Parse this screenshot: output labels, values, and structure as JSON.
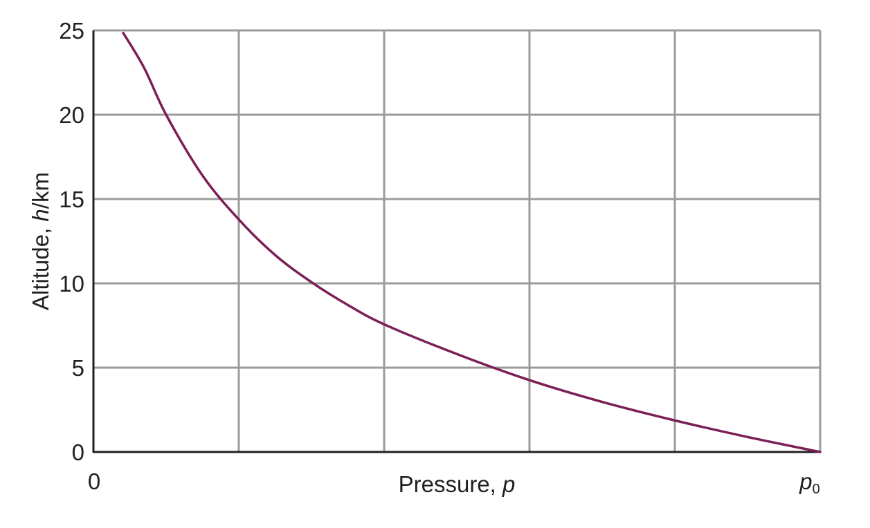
{
  "chart_data": {
    "type": "line",
    "title": "",
    "xlabel": "Pressure, ",
    "xlabel_var": "p",
    "ylabel": "Altitude, ",
    "ylabel_var": "h",
    "ylabel_unit": "/km",
    "x_tick_zero": "0",
    "x_tick_end_var": "p",
    "x_tick_end_sub": "0",
    "y_ticks": [
      "0",
      "5",
      "10",
      "15",
      "20",
      "25"
    ],
    "xlim": [
      0,
      1
    ],
    "ylim": [
      0,
      25
    ],
    "x_grid_fractions": [
      0,
      0.2,
      0.4,
      0.6,
      0.8,
      1.0
    ],
    "grid": true,
    "colors": {
      "curve": "#7b1f55",
      "grid": "#9b9b9b",
      "axis": "#231f20",
      "text": "#231f20"
    },
    "series": [
      {
        "x": [
          1.0,
          0.9,
          0.8,
          0.7,
          0.6,
          0.5,
          0.4,
          0.35,
          0.3,
          0.25,
          0.2,
          0.15,
          0.1,
          0.07,
          0.041
        ],
        "y": [
          0.0,
          0.89,
          1.87,
          2.97,
          4.26,
          5.81,
          7.57,
          8.72,
          10.07,
          11.68,
          13.79,
          16.4,
          20.0,
          22.76,
          24.85
        ]
      }
    ]
  }
}
